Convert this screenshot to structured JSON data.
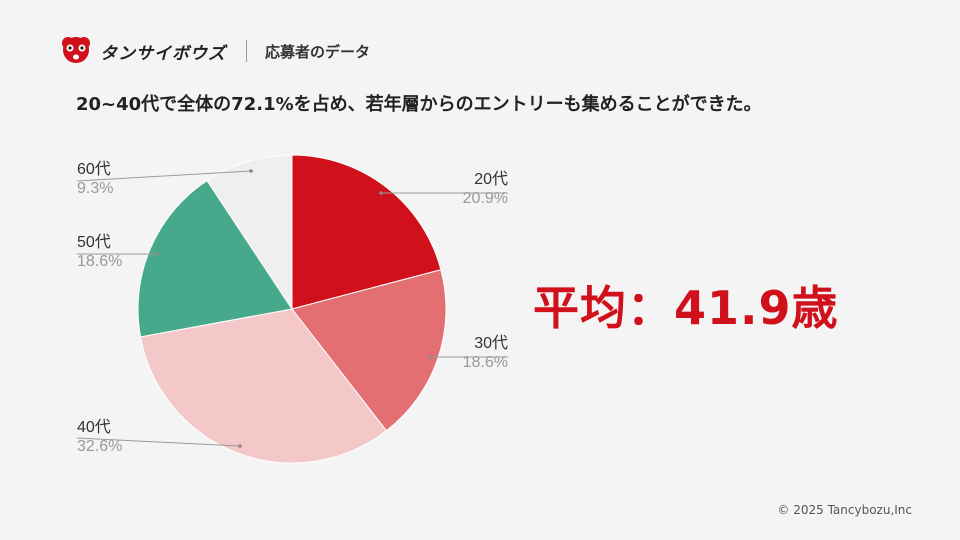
{
  "header": {
    "logo_text": "タンサイボウズ",
    "section": "応募者のデータ"
  },
  "subtitle": "20~40代で全体の72.1%を占め、若年層からのエントリーも集めることができた。",
  "average": "平均：41.9歳",
  "footer": "© 2025  Tancybozu,Inc",
  "colors": {
    "accent": "#d0101a",
    "slice_20": "#d0101a",
    "slice_30": "#e36f73",
    "slice_40": "#f4c7c9",
    "slice_50": "#46a98b",
    "slice_60": "#efefef"
  },
  "chart_data": {
    "type": "pie",
    "slices": [
      {
        "label": "20代",
        "pct_text": "20.9%",
        "value": 20.9
      },
      {
        "label": "30代",
        "pct_text": "18.6%",
        "value": 18.6
      },
      {
        "label": "40代",
        "pct_text": "32.6%",
        "value": 32.6
      },
      {
        "label": "50代",
        "pct_text": "18.6%",
        "value": 18.6
      },
      {
        "label": "60代",
        "pct_text": "9.3%",
        "value": 9.3
      }
    ],
    "start_angle": "12 o'clock",
    "direction": "clockwise",
    "legend": "callouts"
  }
}
